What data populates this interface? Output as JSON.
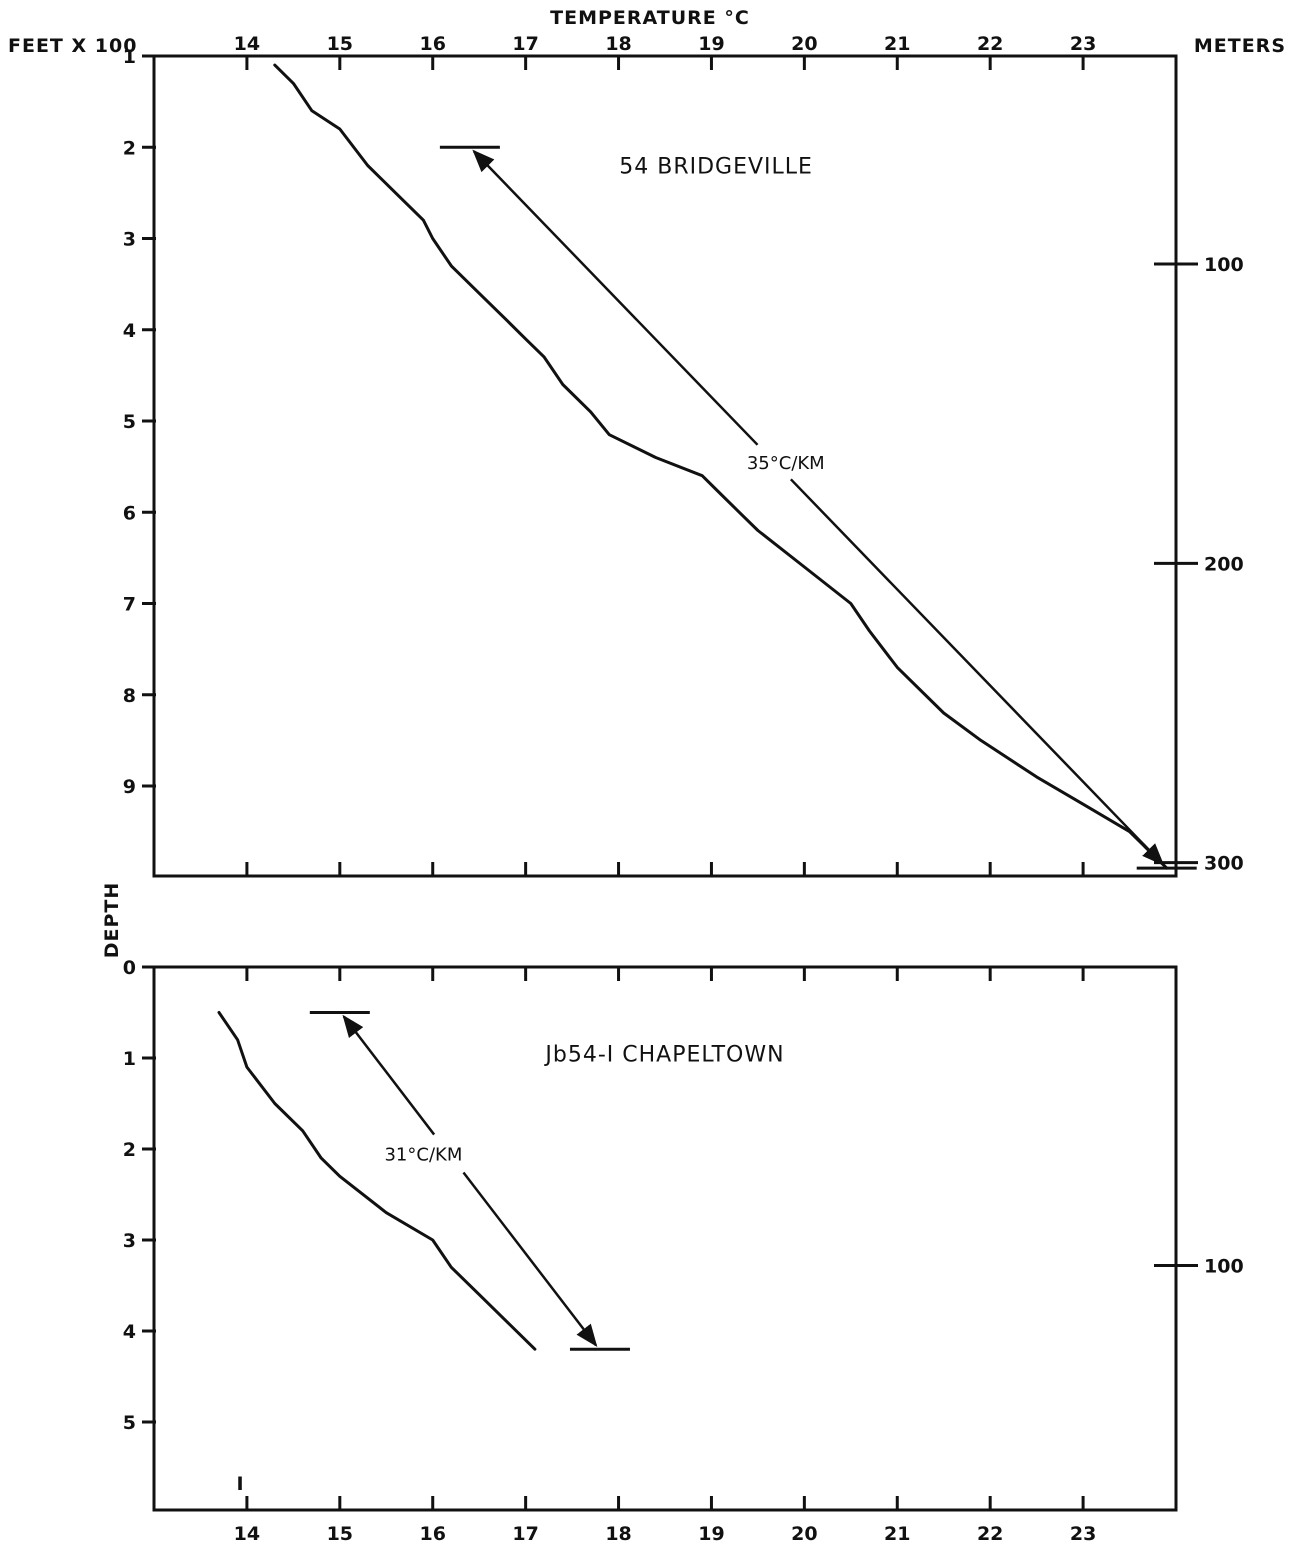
{
  "figure": {
    "top_axis_title": "TEMPERATURE °C",
    "left_unit_label": "FEET X 100",
    "right_unit_label": "METERS",
    "depth_label": "DEPTH",
    "stray_mark": "I"
  },
  "chart_data": [
    {
      "type": "line",
      "title": "54 BRIDGEVILLE",
      "xlabel": "TEMPERATURE °C",
      "ylabel": "FEET X 100",
      "y2label": "METERS",
      "xlim": [
        13,
        24
      ],
      "ylim": [
        1,
        9.9
      ],
      "y_inverted": true,
      "grid": false,
      "x_ticks": [
        14,
        15,
        16,
        17,
        18,
        19,
        20,
        21,
        22,
        23
      ],
      "x_tick_labels": [
        "14",
        "15",
        "16",
        "17",
        "18",
        "19",
        "20",
        "21",
        "22",
        "23"
      ],
      "y_ticks": [
        1,
        2,
        3,
        4,
        5,
        6,
        7,
        8,
        9
      ],
      "y_tick_labels": [
        "1",
        "2",
        "3",
        "4",
        "5",
        "6",
        "7",
        "8",
        "9"
      ],
      "y2_ticks_ft100": [
        3.28,
        6.56,
        9.84
      ],
      "y2_tick_labels": [
        "100",
        "200",
        "300"
      ],
      "series": [
        {
          "x": [
            14.3,
            14.5,
            14.7,
            15.0,
            15.3,
            15.6,
            15.9,
            16.0,
            16.2,
            16.5,
            16.8,
            17.0,
            17.2,
            17.4,
            17.7,
            17.9,
            18.4,
            18.9,
            19.1,
            19.3,
            19.5,
            20.0,
            20.5,
            20.7,
            21.0,
            21.5,
            21.9,
            22.5,
            23.0,
            23.5,
            23.9
          ],
          "y": [
            1.1,
            1.3,
            1.6,
            1.8,
            2.2,
            2.5,
            2.8,
            3.0,
            3.3,
            3.6,
            3.9,
            4.1,
            4.3,
            4.6,
            4.9,
            5.15,
            5.4,
            5.6,
            5.8,
            6.0,
            6.2,
            6.6,
            7.0,
            7.3,
            7.7,
            8.2,
            8.5,
            8.9,
            9.2,
            9.5,
            9.9
          ]
        }
      ],
      "gradient": {
        "label": "35°C/KM",
        "from": [
          16.4,
          2.0
        ],
        "to": [
          23.9,
          9.9
        ],
        "label_at": [
          19.8,
          5.45
        ]
      }
    },
    {
      "type": "line",
      "title": "Jb54-I CHAPELTOWN",
      "xlabel": "TEMPERATURE °C",
      "ylabel": "FEET X 100",
      "y2label": "METERS",
      "xlim": [
        13,
        24
      ],
      "ylim": [
        0,
        5.9
      ],
      "y_inverted": true,
      "grid": false,
      "x_ticks": [
        14,
        15,
        16,
        17,
        18,
        19,
        20,
        21,
        22,
        23
      ],
      "x_tick_labels": [
        "14",
        "15",
        "16",
        "17",
        "18",
        "19",
        "20",
        "21",
        "22",
        "23"
      ],
      "y_ticks": [
        0,
        1,
        2,
        3,
        4,
        5
      ],
      "y_tick_labels": [
        "0",
        "1",
        "2",
        "3",
        "4",
        "5"
      ],
      "y2_ticks_ft100": [
        3.28
      ],
      "y2_tick_labels": [
        "100"
      ],
      "series": [
        {
          "x": [
            13.7,
            13.9,
            14.0,
            14.3,
            14.6,
            14.8,
            15.0,
            15.5,
            16.0,
            16.2,
            16.5,
            16.8,
            17.1
          ],
          "y": [
            0.5,
            0.8,
            1.1,
            1.5,
            1.8,
            2.1,
            2.3,
            2.7,
            3.0,
            3.3,
            3.6,
            3.9,
            4.2
          ]
        }
      ],
      "gradient": {
        "label": "31°C/KM",
        "from": [
          15.0,
          0.5
        ],
        "to": [
          17.8,
          4.2
        ],
        "label_at": [
          15.9,
          2.05
        ]
      }
    }
  ]
}
